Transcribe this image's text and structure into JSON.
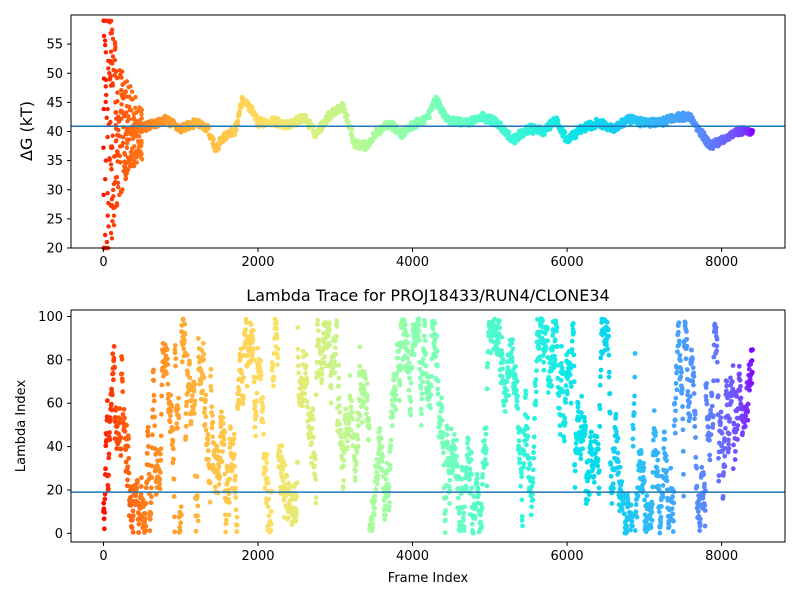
{
  "chart_data": [
    {
      "type": "scatter",
      "title": "",
      "xlabel": "",
      "ylabel": "ΔG (kT)",
      "xlim": [
        -420,
        8820
      ],
      "ylim": [
        20,
        60
      ],
      "xticks": [
        0,
        2000,
        4000,
        6000,
        8000
      ],
      "xtick_labels": [
        "0",
        "2000",
        "4000",
        "6000",
        "8000"
      ],
      "yticks": [
        20,
        25,
        30,
        35,
        40,
        45,
        50,
        55
      ],
      "ytick_labels": [
        "20",
        "25",
        "30",
        "35",
        "40",
        "45",
        "50",
        "55"
      ],
      "hline": 40.9,
      "hline_color": "#1f77b4",
      "colormap": "rainbow (red at frame 0 to violet at last frame)",
      "grid": false,
      "x_max": 8400,
      "trend": [
        [
          30,
          41.5
        ],
        [
          150,
          40.5
        ],
        [
          300,
          40.0
        ],
        [
          450,
          40.5
        ],
        [
          600,
          41.0
        ],
        [
          800,
          42.0
        ],
        [
          1000,
          40.5
        ],
        [
          1200,
          41.5
        ],
        [
          1350,
          40.5
        ],
        [
          1450,
          37.0
        ],
        [
          1550,
          39.0
        ],
        [
          1700,
          40.0
        ],
        [
          1800,
          45.5
        ],
        [
          1900,
          44.0
        ],
        [
          2000,
          41.5
        ],
        [
          2200,
          41.8
        ],
        [
          2400,
          41.0
        ],
        [
          2600,
          42.5
        ],
        [
          2750,
          39.5
        ],
        [
          2900,
          42.5
        ],
        [
          3100,
          44.5
        ],
        [
          3250,
          38.0
        ],
        [
          3400,
          37.5
        ],
        [
          3550,
          40.0
        ],
        [
          3700,
          41.5
        ],
        [
          3850,
          39.5
        ],
        [
          4000,
          41.0
        ],
        [
          4200,
          42.5
        ],
        [
          4300,
          45.5
        ],
        [
          4450,
          42.0
        ],
        [
          4700,
          41.5
        ],
        [
          4900,
          42.5
        ],
        [
          5100,
          41.5
        ],
        [
          5300,
          38.5
        ],
        [
          5500,
          40.5
        ],
        [
          5700,
          40.0
        ],
        [
          5850,
          42.0
        ],
        [
          6000,
          38.5
        ],
        [
          6200,
          40.5
        ],
        [
          6400,
          41.5
        ],
        [
          6600,
          40.5
        ],
        [
          6800,
          42.0
        ],
        [
          7000,
          41.5
        ],
        [
          7200,
          41.5
        ],
        [
          7400,
          42.5
        ],
        [
          7600,
          42.5
        ],
        [
          7700,
          40.5
        ],
        [
          7850,
          37.5
        ],
        [
          8000,
          38.5
        ],
        [
          8200,
          40.0
        ],
        [
          8400,
          40.0
        ]
      ]
    },
    {
      "type": "scatter",
      "title": "Lambda Trace for PROJ18433/RUN4/CLONE34",
      "xlabel": "Frame Index",
      "ylabel": "Lambda Index",
      "xlim": [
        -420,
        8820
      ],
      "ylim": [
        -4,
        103
      ],
      "xticks": [
        0,
        2000,
        4000,
        6000,
        8000
      ],
      "xtick_labels": [
        "0",
        "2000",
        "4000",
        "6000",
        "8000"
      ],
      "yticks": [
        0,
        20,
        40,
        60,
        80,
        100
      ],
      "ytick_labels": [
        "0",
        "20",
        "40",
        "60",
        "80",
        "100"
      ],
      "hline": 19,
      "hline_color": "#1f77b4",
      "colormap": "rainbow (red at frame 0 to violet at last frame)",
      "grid": false,
      "value_range": [
        0,
        99
      ],
      "x_max": 8400
    }
  ]
}
